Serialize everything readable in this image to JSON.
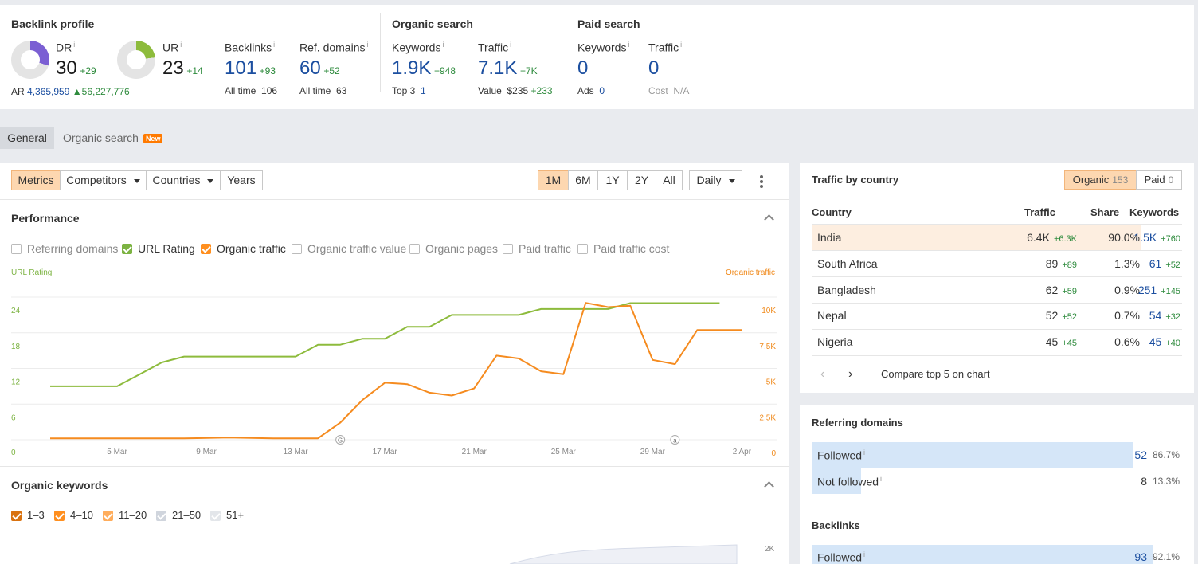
{
  "backlink_profile": {
    "title": "Backlink profile",
    "dr": {
      "label": "DR",
      "value": "30",
      "delta": "+29",
      "ratio": 0.3
    },
    "ur": {
      "label": "UR",
      "value": "23",
      "delta": "+14",
      "ratio": 0.23
    },
    "ar": {
      "label": "AR",
      "value": "4,365,959",
      "change": "56,227,776"
    },
    "backlinks": {
      "label": "Backlinks",
      "value": "101",
      "delta": "+93",
      "sub_label": "All time",
      "sub_value": "106"
    },
    "ref_domains": {
      "label": "Ref. domains",
      "value": "60",
      "delta": "+52",
      "sub_label": "All time",
      "sub_value": "63"
    }
  },
  "organic_search": {
    "title": "Organic search",
    "keywords": {
      "label": "Keywords",
      "value": "1.9K",
      "delta": "+948",
      "sub_label": "Top 3",
      "sub_value": "1"
    },
    "traffic": {
      "label": "Traffic",
      "value": "7.1K",
      "delta": "+7K",
      "sub_label": "Value",
      "sub_value": "$235",
      "sub_delta": "+233"
    }
  },
  "paid_search": {
    "title": "Paid search",
    "keywords": {
      "label": "Keywords",
      "value": "0",
      "sub_label": "Ads",
      "sub_value": "0"
    },
    "traffic": {
      "label": "Traffic",
      "value": "0",
      "sub_label": "Cost",
      "sub_value": "N/A"
    }
  },
  "info_mark": "i",
  "tabs": {
    "general": "General",
    "organic": "Organic search",
    "new_badge": "New"
  },
  "toolbar": {
    "metrics": "Metrics",
    "competitors": "Competitors",
    "countries": "Countries",
    "years": "Years",
    "ranges": [
      "1M",
      "6M",
      "1Y",
      "2Y",
      "All"
    ],
    "active_range": "1M",
    "interval": "Daily"
  },
  "performance": {
    "title": "Performance",
    "toggles": {
      "referring_domains": "Referring domains",
      "url_rating": "URL Rating",
      "organic_traffic": "Organic traffic",
      "organic_traffic_value": "Organic traffic value",
      "organic_pages": "Organic pages",
      "paid_traffic": "Paid traffic",
      "paid_traffic_cost": "Paid traffic cost"
    }
  },
  "chart_data": {
    "type": "line",
    "left_axis_label": "URL Rating",
    "right_axis_label": "Organic traffic",
    "x_ticks": [
      "5 Mar",
      "9 Mar",
      "13 Mar",
      "17 Mar",
      "21 Mar",
      "25 Mar",
      "29 Mar",
      "2 Apr"
    ],
    "y_left_ticks": [
      "0",
      "6",
      "12",
      "18",
      "24"
    ],
    "y_right_ticks": [
      "0",
      "2.5K",
      "5K",
      "7.5K",
      "10K"
    ],
    "ylim_left": [
      0,
      24
    ],
    "ylim_right": [
      0,
      10000
    ],
    "series": [
      {
        "name": "URL Rating",
        "axis": "left",
        "color": "#8dbb3c",
        "x": [
          "2 Mar",
          "3 Mar",
          "4 Mar",
          "5 Mar",
          "6 Mar",
          "7 Mar",
          "8 Mar",
          "9 Mar",
          "10 Mar",
          "11 Mar",
          "12 Mar",
          "13 Mar",
          "14 Mar",
          "15 Mar",
          "16 Mar",
          "17 Mar",
          "18 Mar",
          "19 Mar",
          "20 Mar",
          "21 Mar",
          "22 Mar",
          "23 Mar",
          "24 Mar",
          "25 Mar",
          "26 Mar",
          "27 Mar",
          "28 Mar",
          "29 Mar",
          "30 Mar",
          "31 Mar",
          "1 Apr"
        ],
        "values": [
          9,
          9,
          9,
          9,
          11,
          13,
          14,
          14,
          14,
          14,
          14,
          14,
          16,
          16,
          17,
          17,
          19,
          19,
          21,
          21,
          21,
          21,
          22,
          22,
          22,
          22,
          23,
          23,
          23,
          23,
          23
        ]
      },
      {
        "name": "Organic traffic",
        "axis": "right",
        "color": "#f58b1f",
        "x": [
          "2 Mar",
          "4 Mar",
          "6 Mar",
          "8 Mar",
          "10 Mar",
          "12 Mar",
          "14 Mar",
          "15 Mar",
          "16 Mar",
          "17 Mar",
          "18 Mar",
          "19 Mar",
          "20 Mar",
          "21 Mar",
          "22 Mar",
          "23 Mar",
          "24 Mar",
          "25 Mar",
          "26 Mar",
          "27 Mar",
          "28 Mar",
          "29 Mar",
          "30 Mar",
          "31 Mar",
          "1 Apr",
          "2 Apr"
        ],
        "values": [
          100,
          100,
          100,
          100,
          150,
          100,
          100,
          1200,
          2800,
          4000,
          3900,
          3300,
          3100,
          3600,
          5900,
          5700,
          4800,
          4600,
          9600,
          9300,
          9400,
          5600,
          5300,
          7700,
          7700,
          7700
        ]
      }
    ],
    "annotations": [
      "G",
      "a"
    ]
  },
  "organic_keywords": {
    "title": "Organic keywords",
    "ranges": [
      "1–3",
      "4–10",
      "11–20",
      "21–50",
      "51+"
    ],
    "axis_tick": "2K"
  },
  "traffic_by_country": {
    "title": "Traffic by country",
    "organic_label": "Organic",
    "organic_count": "153",
    "paid_label": "Paid",
    "paid_count": "0",
    "headers": [
      "Country",
      "Traffic",
      "Share",
      "Keywords"
    ],
    "rows": [
      {
        "country": "India",
        "traffic": "6.4K",
        "traffic_delta": "+6.3K",
        "share": "90.0%",
        "keywords": "1.5K",
        "kw_delta": "+760"
      },
      {
        "country": "South Africa",
        "traffic": "89",
        "traffic_delta": "+89",
        "share": "1.3%",
        "keywords": "61",
        "kw_delta": "+52"
      },
      {
        "country": "Bangladesh",
        "traffic": "62",
        "traffic_delta": "+59",
        "share": "0.9%",
        "keywords": "251",
        "kw_delta": "+145"
      },
      {
        "country": "Nepal",
        "traffic": "52",
        "traffic_delta": "+52",
        "share": "0.7%",
        "keywords": "54",
        "kw_delta": "+32"
      },
      {
        "country": "Nigeria",
        "traffic": "45",
        "traffic_delta": "+45",
        "share": "0.6%",
        "keywords": "45",
        "kw_delta": "+40"
      }
    ],
    "compare_label": "Compare top 5 on chart"
  },
  "referring_domains": {
    "title": "Referring domains",
    "rows": [
      {
        "label": "Followed",
        "value": "52",
        "pct": "86.7%",
        "ratio": 0.867
      },
      {
        "label": "Not followed",
        "value": "8",
        "pct": "13.3%",
        "ratio": 0.133
      }
    ]
  },
  "backlinks": {
    "title": "Backlinks",
    "rows": [
      {
        "label": "Followed",
        "value": "93",
        "pct": "92.1%",
        "ratio": 0.921
      }
    ]
  }
}
